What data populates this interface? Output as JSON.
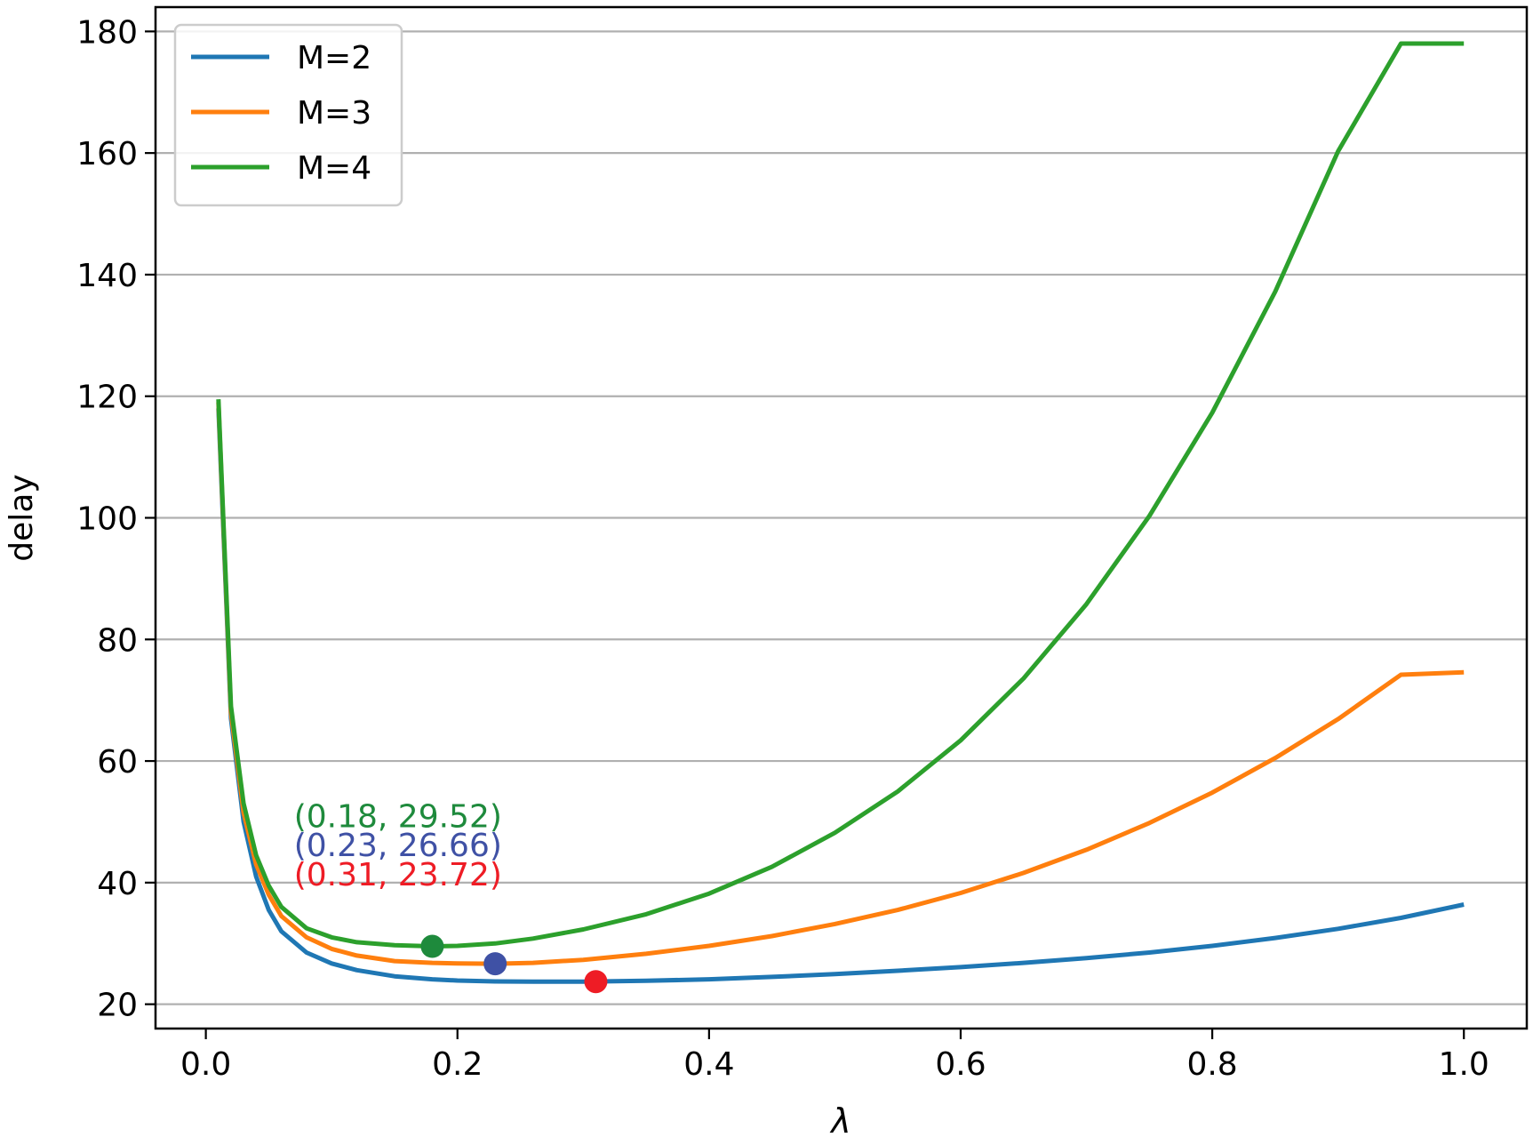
{
  "chart_data": {
    "type": "line",
    "title": "",
    "xlabel": "λ",
    "ylabel": "delay",
    "xlim": [
      -0.04,
      1.05
    ],
    "ylim": [
      16.0,
      184.0
    ],
    "x_ticks": [
      0.0,
      0.2,
      0.4,
      0.6,
      0.8,
      1.0
    ],
    "x_tick_labels": [
      "0.0",
      "0.2",
      "0.4",
      "0.6",
      "0.8",
      "1.0"
    ],
    "y_ticks": [
      20,
      40,
      60,
      80,
      100,
      120,
      140,
      160,
      180
    ],
    "y_tick_labels": [
      "20",
      "40",
      "60",
      "80",
      "100",
      "120",
      "140",
      "160",
      "180"
    ],
    "grid": "horizontal",
    "legend_position": "upper-left",
    "series": [
      {
        "name": "M=2",
        "color": "#1f77b4",
        "x": [
          0.01,
          0.02,
          0.03,
          0.04,
          0.05,
          0.06,
          0.08,
          0.1,
          0.12,
          0.15,
          0.18,
          0.2,
          0.23,
          0.26,
          0.3,
          0.35,
          0.4,
          0.45,
          0.5,
          0.55,
          0.6,
          0.65,
          0.7,
          0.75,
          0.8,
          0.85,
          0.9,
          0.95,
          1.0
        ],
        "y": [
          118.0,
          67.0,
          50.0,
          41.0,
          35.5,
          32.0,
          28.5,
          26.7,
          25.6,
          24.6,
          24.1,
          23.9,
          23.75,
          23.72,
          23.72,
          23.85,
          24.1,
          24.5,
          24.95,
          25.5,
          26.1,
          26.8,
          27.6,
          28.5,
          29.6,
          30.9,
          32.4,
          34.2,
          36.4
        ]
      },
      {
        "name": "M=3",
        "color": "#ff7f0e",
        "x": [
          0.01,
          0.02,
          0.03,
          0.04,
          0.05,
          0.06,
          0.08,
          0.1,
          0.12,
          0.15,
          0.18,
          0.2,
          0.23,
          0.26,
          0.3,
          0.35,
          0.4,
          0.45,
          0.5,
          0.55,
          0.6,
          0.65,
          0.7,
          0.75,
          0.8,
          0.85,
          0.9,
          0.95,
          1.0
        ],
        "y": [
          119.0,
          68.0,
          51.5,
          43.0,
          38.0,
          34.5,
          31.0,
          29.1,
          28.0,
          27.1,
          26.8,
          26.7,
          26.66,
          26.8,
          27.3,
          28.3,
          29.6,
          31.2,
          33.2,
          35.5,
          38.3,
          41.6,
          45.4,
          49.8,
          54.8,
          60.5,
          66.9,
          74.2,
          74.6
        ]
      },
      {
        "name": "M=4",
        "color": "#2ca02c",
        "x": [
          0.01,
          0.02,
          0.03,
          0.04,
          0.05,
          0.06,
          0.08,
          0.1,
          0.12,
          0.15,
          0.18,
          0.2,
          0.23,
          0.26,
          0.3,
          0.35,
          0.4,
          0.45,
          0.5,
          0.55,
          0.6,
          0.65,
          0.7,
          0.75,
          0.8,
          0.85,
          0.9,
          0.95,
          1.0
        ],
        "y": [
          119.5,
          69.0,
          53.0,
          44.5,
          39.5,
          36.0,
          32.5,
          31.0,
          30.2,
          29.7,
          29.52,
          29.6,
          30.0,
          30.8,
          32.3,
          34.8,
          38.2,
          42.6,
          48.2,
          55.0,
          63.4,
          73.6,
          85.8,
          100.3,
          117.3,
          137.2,
          160.3,
          178.0,
          178.0
        ]
      }
    ],
    "markers": [
      {
        "x": 0.18,
        "y": 29.52,
        "color": "#1e8a3c",
        "label": "(0.18, 29.52)"
      },
      {
        "x": 0.23,
        "y": 26.66,
        "color": "#3f51a5",
        "label": "(0.23, 26.66)"
      },
      {
        "x": 0.31,
        "y": 23.72,
        "color": "#ee1c25",
        "label": "(0.31, 23.72)"
      }
    ]
  }
}
